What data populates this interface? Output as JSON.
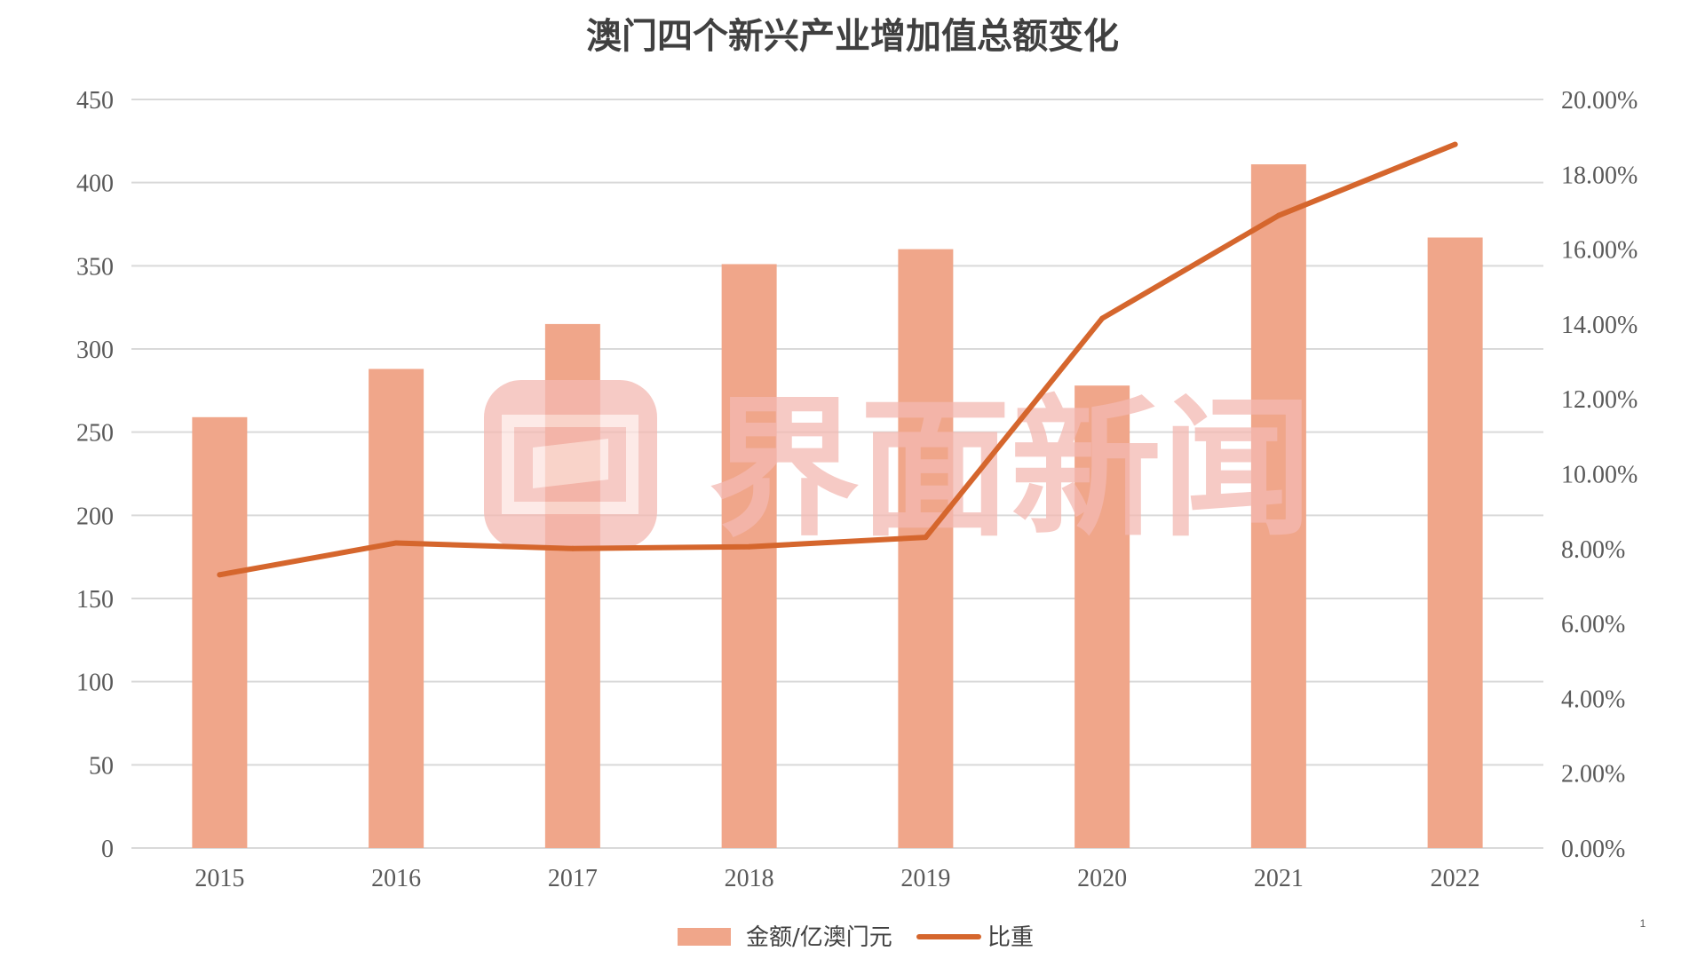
{
  "watermark": {
    "text": "界面新闻"
  },
  "page_number": "1",
  "colors": {
    "bar": "#f0a68a",
    "line": "#d5662d",
    "grid": "#d9d9d9",
    "watermark": "#f4b9b2"
  },
  "chart_data": {
    "type": "bar",
    "title": "澳门四个新兴产业增加值总额变化",
    "categories": [
      "2015",
      "2016",
      "2017",
      "2018",
      "2019",
      "2020",
      "2021",
      "2022"
    ],
    "series": [
      {
        "name": "金额/亿澳门元",
        "type": "bar",
        "axis": "left",
        "values": [
          259,
          288,
          315,
          351,
          360,
          278,
          411,
          367
        ]
      },
      {
        "name": "比重",
        "type": "line",
        "axis": "right",
        "values": [
          0.073,
          0.0815,
          0.08,
          0.0805,
          0.083,
          0.1415,
          0.169,
          0.188
        ]
      }
    ],
    "y_left": {
      "min": 0,
      "max": 450,
      "ticks": [
        "0",
        "50",
        "100",
        "150",
        "200",
        "250",
        "300",
        "350",
        "400",
        "450"
      ]
    },
    "y_right": {
      "min": 0,
      "max": 0.2,
      "ticks": [
        "0.00%",
        "2.00%",
        "4.00%",
        "6.00%",
        "8.00%",
        "10.00%",
        "12.00%",
        "14.00%",
        "16.00%",
        "18.00%",
        "20.00%"
      ]
    },
    "grid": true,
    "legend_position": "bottom"
  }
}
